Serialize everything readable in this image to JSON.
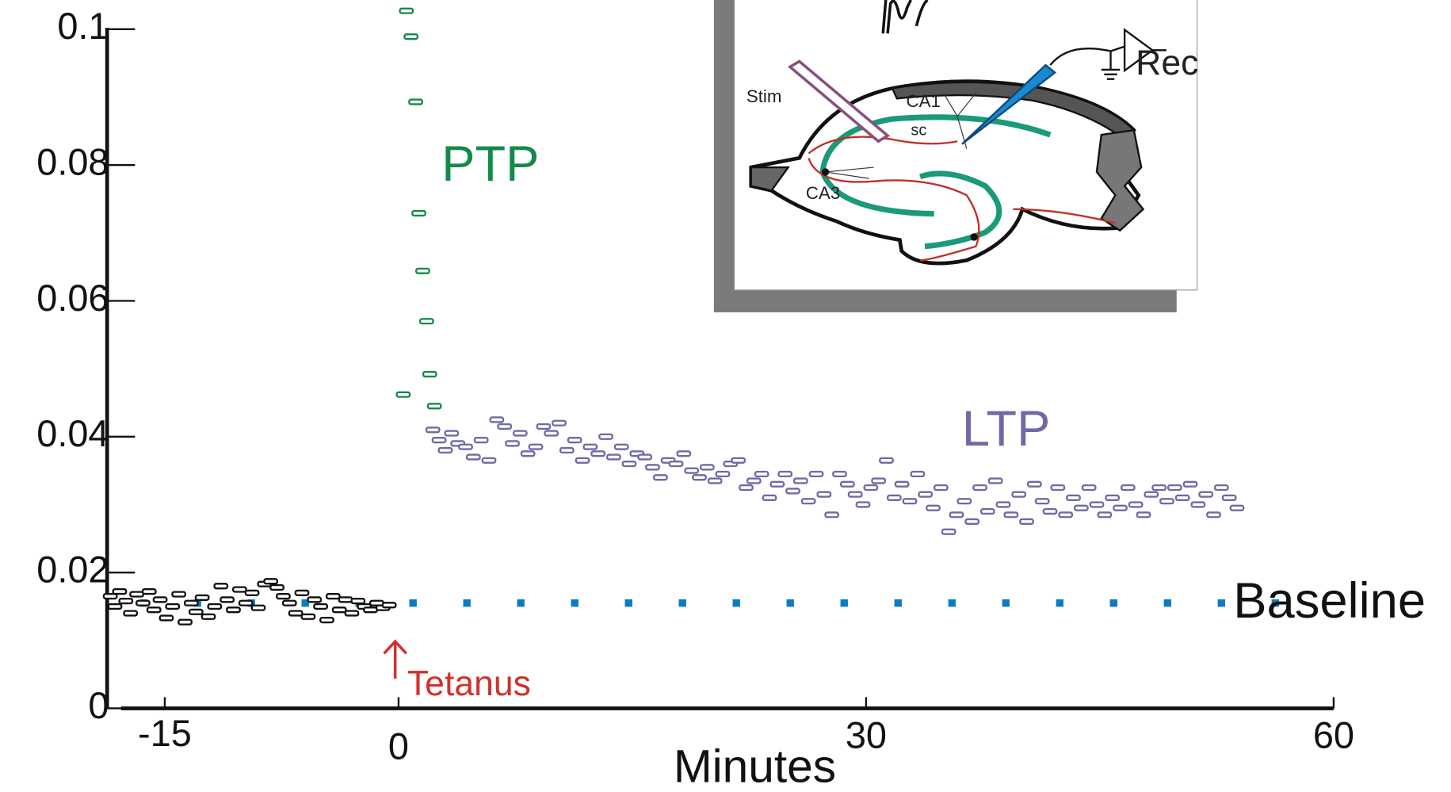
{
  "chart_data": {
    "type": "scatter",
    "xlabel": "Minutes",
    "xlim": [
      -18.7,
      60
    ],
    "xticks": [
      -15,
      0,
      30,
      60
    ],
    "ylim": [
      0,
      0.1043
    ],
    "yticks": [
      0,
      0.02,
      0.04,
      0.06,
      0.08,
      0.1
    ],
    "series": [
      {
        "name": "Baseline",
        "color": "#0a7cc4",
        "mode": "dotted-line",
        "x": [
          -16.6,
          57.1
        ],
        "values": [
          0.0155,
          0.0155
        ]
      },
      {
        "name": "PTP",
        "color": "#138a4a",
        "mode": "markers",
        "x": [
          0.3,
          0.5,
          0.8,
          1.1,
          1.3,
          1.55,
          1.8,
          2.0,
          2.3
        ],
        "values": [
          0.0462,
          0.1027,
          0.0989,
          0.0893,
          0.0729,
          0.0644,
          0.057,
          0.0492,
          0.0445
        ]
      },
      {
        "name": "LTP",
        "color": "#6d6aa6",
        "mode": "markers",
        "x": [
          2.2,
          2.6,
          3.0,
          3.4,
          3.8,
          4.3,
          4.8,
          5.3,
          5.8,
          6.3,
          6.8,
          7.3,
          7.8,
          8.3,
          8.8,
          9.3,
          9.8,
          10.3,
          10.8,
          11.3,
          11.8,
          12.3,
          12.8,
          13.3,
          13.8,
          14.3,
          14.8,
          15.3,
          15.8,
          16.3,
          16.8,
          17.3,
          17.8,
          18.3,
          18.8,
          19.3,
          19.8,
          20.3,
          20.8,
          21.3,
          21.8,
          22.3,
          22.8,
          23.3,
          23.8,
          24.3,
          24.8,
          25.3,
          25.8,
          26.3,
          26.8,
          27.3,
          27.8,
          28.3,
          28.8,
          29.3,
          29.8,
          30.3,
          30.8,
          31.3,
          31.8,
          32.3,
          32.8,
          33.3,
          33.8,
          34.3,
          34.8,
          35.3,
          35.8,
          36.3,
          36.8,
          37.3,
          37.8,
          38.3,
          38.8,
          39.3,
          39.8,
          40.3,
          40.8,
          41.3,
          41.8,
          42.3,
          42.8,
          43.3,
          43.8,
          44.3,
          44.8,
          45.3,
          45.8,
          46.3,
          46.8,
          47.3,
          47.8,
          48.3,
          48.8,
          49.3,
          49.8,
          50.3,
          50.8,
          51.3,
          51.8,
          52.3,
          52.8,
          53.3,
          53.8
        ],
        "values": [
          0.041,
          0.0395,
          0.038,
          0.0405,
          0.039,
          0.0385,
          0.037,
          0.0395,
          0.0365,
          0.0425,
          0.0415,
          0.039,
          0.0405,
          0.0375,
          0.0385,
          0.0415,
          0.0405,
          0.042,
          0.038,
          0.0395,
          0.0365,
          0.0385,
          0.0375,
          0.04,
          0.037,
          0.0385,
          0.036,
          0.0375,
          0.037,
          0.0355,
          0.034,
          0.0365,
          0.036,
          0.0375,
          0.035,
          0.034,
          0.0355,
          0.0335,
          0.0345,
          0.036,
          0.0365,
          0.0325,
          0.0335,
          0.0345,
          0.031,
          0.033,
          0.0345,
          0.032,
          0.0335,
          0.0305,
          0.0345,
          0.0315,
          0.0285,
          0.0345,
          0.033,
          0.0315,
          0.03,
          0.0325,
          0.0335,
          0.0365,
          0.031,
          0.033,
          0.0305,
          0.0345,
          0.0315,
          0.0295,
          0.0325,
          0.026,
          0.0285,
          0.0305,
          0.0275,
          0.0325,
          0.029,
          0.0335,
          0.03,
          0.0285,
          0.0315,
          0.0275,
          0.033,
          0.0305,
          0.029,
          0.0325,
          0.0285,
          0.031,
          0.0295,
          0.0325,
          0.03,
          0.0285,
          0.031,
          0.0295,
          0.0325,
          0.03,
          0.0285,
          0.0315,
          0.0325,
          0.0305,
          0.0325,
          0.031,
          0.033,
          0.03,
          0.0315,
          0.0285,
          0.0325,
          0.031,
          0.0295
        ]
      },
      {
        "color": "#111111",
        "mode": "markers",
        "x": [
          -18.5,
          -18.2,
          -17.9,
          -17.5,
          -17.2,
          -16.8,
          -16.4,
          -16.0,
          -15.7,
          -15.3,
          -14.9,
          -14.5,
          -14.1,
          -13.7,
          -13.3,
          -13.0,
          -12.6,
          -12.2,
          -11.8,
          -11.4,
          -11.0,
          -10.6,
          -10.2,
          -9.8,
          -9.4,
          -9.0,
          -8.6,
          -8.2,
          -7.8,
          -7.4,
          -7.0,
          -6.6,
          -6.2,
          -5.8,
          -5.4,
          -5.0,
          -4.6,
          -4.2,
          -3.8,
          -3.4,
          -3.0,
          -2.6,
          -2.2,
          -1.8,
          -1.4,
          -1.0,
          -0.6
        ],
        "values": [
          0.0165,
          0.015,
          0.0172,
          0.0158,
          0.014,
          0.0168,
          0.0155,
          0.0172,
          0.0145,
          0.016,
          0.0133,
          0.015,
          0.0168,
          0.0127,
          0.0155,
          0.0142,
          0.0163,
          0.0135,
          0.015,
          0.018,
          0.016,
          0.0145,
          0.0175,
          0.0155,
          0.017,
          0.0148,
          0.0183,
          0.0187,
          0.0178,
          0.0165,
          0.0155,
          0.014,
          0.017,
          0.0135,
          0.016,
          0.015,
          0.013,
          0.0165,
          0.0145,
          0.016,
          0.014,
          0.0158,
          0.015,
          0.0145,
          0.0155,
          0.0148,
          0.0152
        ]
      }
    ],
    "annotations": [
      {
        "text": "Tetanus",
        "color": "#d0312d"
      }
    ],
    "inset": {
      "labels": [
        "Stim",
        "CA1",
        "sc",
        "CA3",
        "Rec"
      ]
    }
  }
}
